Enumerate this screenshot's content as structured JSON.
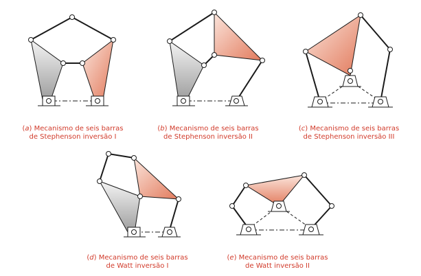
{
  "colors": {
    "caption": "#d13a2a",
    "link": "#1a1a1a",
    "gray_plate": "#a9a9a9",
    "salmon_plate": "#e98a70"
  },
  "panels": [
    {
      "id": "a",
      "letter": "a",
      "line1": "Mecanismo de seis barras",
      "line2": "de Stephenson inversão I"
    },
    {
      "id": "b",
      "letter": "b",
      "line1": "Mecanismo de seis barras",
      "line2": "de Stephenson inversão II"
    },
    {
      "id": "c",
      "letter": "c",
      "line1": "Mecanismo de seis barras",
      "line2": "de Stephenson inversão III"
    },
    {
      "id": "d",
      "letter": "d",
      "line1": "Mecanismo de seis barras",
      "line2": "de Watt inversão I"
    },
    {
      "id": "e",
      "letter": "e",
      "line1": "Mecanismo de seis barras",
      "line2": "de Watt inversão II"
    }
  ]
}
